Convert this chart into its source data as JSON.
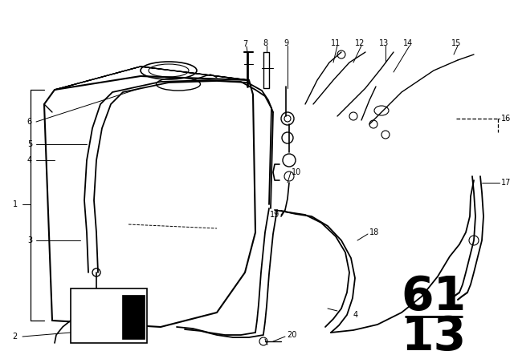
{
  "bg_color": "#ffffff",
  "line_color": "#000000",
  "part_number_top": "61",
  "part_number_bottom": "13",
  "figsize": [
    6.4,
    4.48
  ],
  "dpi": 100
}
